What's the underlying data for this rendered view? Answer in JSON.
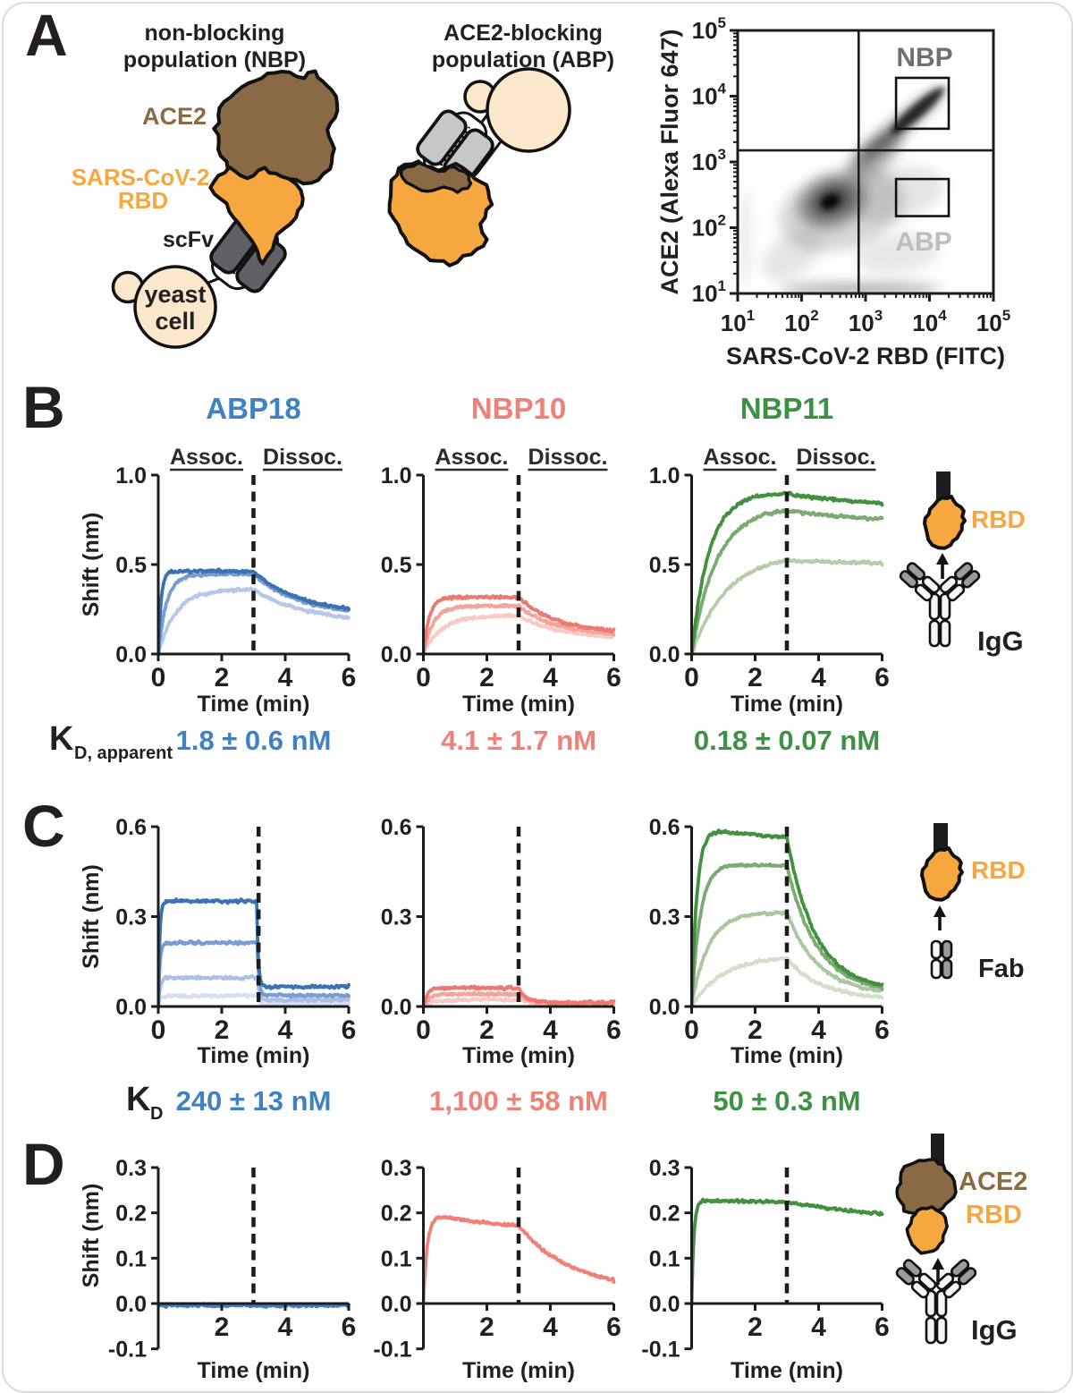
{
  "page": {
    "background": "#ffffff",
    "card_border": "#dcdcdc"
  },
  "colors": {
    "ink": "#231f20",
    "blue_text": "#3f81c1",
    "salmon_text": "#f08078",
    "green_text": "#3d9145",
    "brown": "#8a6a45",
    "orange": "#f6a73f",
    "yeast": "#fae7cc",
    "scfv_dark": "#606166",
    "scfv_light": "#c6c7c9",
    "nbp_gate_label": "#6f7072",
    "abp_gate_label": "#bdbec0"
  },
  "panels": {
    "a": {
      "letter": "A",
      "nbp_title1": "non-blocking",
      "nbp_title2": "population (NBP)",
      "abp_title1": "ACE2-blocking",
      "abp_title2": "population (ABP)",
      "labels": {
        "ace2": "ACE2",
        "sars1": "SARS-CoV-2",
        "sars2": "RBD",
        "scfv": "scFv",
        "yeast1": "yeast",
        "yeast2": "cell"
      }
    },
    "b": {
      "letter": "B",
      "kd_label_base": "K",
      "kd_label_sub": "D, apparent",
      "icon_top_label": "RBD",
      "icon_bottom_label": "IgG"
    },
    "c": {
      "letter": "C",
      "kd_label_base": "K",
      "kd_label_sub": "D",
      "icon_top_label": "RBD",
      "icon_bottom_label": "Fab"
    },
    "d": {
      "letter": "D",
      "icon_ace2_label": "ACE2",
      "icon_rbd_label": "RBD",
      "icon_bottom_label": "IgG"
    }
  },
  "chart_data": [
    {
      "id": "a-flow",
      "type": "density-scatter",
      "xlabel": "SARS-CoV-2 RBD (FITC)",
      "ylabel": "ACE2 (Alexa Fluor 647)",
      "xscale": "log",
      "yscale": "log",
      "xlim": [
        10,
        100000
      ],
      "ylim": [
        10,
        100000
      ],
      "tick_exponents": [
        1,
        2,
        3,
        4,
        5
      ],
      "tick_mantissa": "10",
      "quadrant_divider": {
        "x": 780,
        "y": 1500
      },
      "gates": [
        {
          "name": "NBP",
          "x": [
            3000,
            20000
          ],
          "y": [
            3200,
            19000
          ],
          "label_color": "#6f7072"
        },
        {
          "name": "ABP",
          "x": [
            3000,
            20000
          ],
          "y": [
            150,
            550
          ],
          "label_color": "#bdbec0"
        }
      ],
      "density_blobs": [
        {
          "cx": 300,
          "cy": 250,
          "sx": 0.55,
          "sy": 0.38,
          "rot": -22,
          "op": 0.36
        },
        {
          "cx": 290,
          "cy": 255,
          "sx": 0.3,
          "sy": 0.2,
          "rot": -25,
          "op": 0.55
        },
        {
          "cx": 280,
          "cy": 250,
          "sx": 0.15,
          "sy": 0.1,
          "rot": -25,
          "op": 0.92
        },
        {
          "cx": 420,
          "cy": 190,
          "sx": 1.0,
          "sy": 0.6,
          "rot": -16,
          "op": 0.16
        },
        {
          "cx": 70,
          "cy": 38,
          "sx": 0.52,
          "sy": 0.3,
          "rot": -32,
          "op": 0.1
        },
        {
          "cx": 1400,
          "cy": 1300,
          "sx": 0.52,
          "sy": 0.24,
          "rot": -40,
          "op": 0.3
        },
        {
          "cx": 3500,
          "cy": 3500,
          "sx": 0.9,
          "sy": 0.125,
          "rot": -41,
          "op": 0.5
        },
        {
          "cx": 6500,
          "cy": 6000,
          "sx": 0.55,
          "sy": 0.1,
          "rot": -41,
          "op": 0.75
        },
        {
          "cx": 2800,
          "cy": 320,
          "sx": 0.8,
          "sy": 0.4,
          "rot": -14,
          "op": 0.1
        },
        {
          "cx": 800,
          "cy": 11,
          "sx": 1.25,
          "sy": 0.048,
          "rot": 0,
          "op": 0.45
        },
        {
          "cx": 900,
          "cy": 13,
          "sx": 1.3,
          "sy": 0.065,
          "rot": 0,
          "op": 0.16
        },
        {
          "cx": 13,
          "cy": 70,
          "sx": 0.08,
          "sy": 0.75,
          "rot": 0,
          "op": 0.1
        },
        {
          "cx": 3200,
          "cy": 40,
          "sx": 0.65,
          "sy": 0.3,
          "rot": -8,
          "op": 0.09
        }
      ]
    },
    {
      "id": "b1",
      "panel": "B",
      "column": 0,
      "type": "line",
      "title": "ABP18",
      "title_color": "#3f81c1",
      "xlabel": "Time (min)",
      "ylabel": "Shift (nm)",
      "xlim": [
        0,
        6
      ],
      "xticks": [
        [
          0,
          "0"
        ],
        [
          2,
          "2"
        ],
        [
          4,
          "4"
        ],
        [
          6,
          "6"
        ]
      ],
      "ylim": [
        0,
        1
      ],
      "yticks": [
        [
          0,
          "0.0"
        ],
        [
          0.5,
          "0.5"
        ],
        [
          1,
          "1.0"
        ]
      ],
      "phase_labels": [
        "Assoc.",
        "Dissoc."
      ],
      "dissoc_time": 3,
      "kd_value": "1.8 ± 0.6 nM",
      "kd_color": "#3f81c1",
      "series": [
        {
          "color": "#3a72b2",
          "rise_tau": 0.09,
          "plateau": 0.462,
          "shift_at_3min": 0.462,
          "shift_at_6min": 0.253,
          "fall_tau": 1.5
        },
        {
          "color": "#7b9cd3",
          "rise_tau": 0.26,
          "plateau": 0.445,
          "shift_at_3min": 0.445,
          "shift_at_6min": 0.242,
          "fall_tau": 1.5
        },
        {
          "color": "#b7c8e7",
          "rise_tau": 0.55,
          "plateau": 0.362,
          "shift_at_3min": 0.36,
          "shift_at_6min": 0.205,
          "fall_tau": 1.65
        }
      ]
    },
    {
      "id": "b2",
      "panel": "B",
      "column": 1,
      "type": "line",
      "title": "NBP10",
      "title_color": "#f08078",
      "xlabel": "Time (min)",
      "ylabel": null,
      "xlim": [
        0,
        6
      ],
      "xticks": [
        [
          0,
          "0"
        ],
        [
          2,
          "2"
        ],
        [
          4,
          "4"
        ],
        [
          6,
          "6"
        ]
      ],
      "ylim": [
        0,
        1
      ],
      "yticks": [
        [
          0,
          "0.0"
        ],
        [
          0.5,
          "0.5"
        ],
        [
          1,
          "1.0"
        ]
      ],
      "phase_labels": [
        "Assoc.",
        "Dissoc."
      ],
      "dissoc_time": 3,
      "kd_value": "4.1 ± 1.7 nM",
      "kd_color": "#f08078",
      "series": [
        {
          "color": "#ed7a72",
          "rise_tau": 0.18,
          "plateau": 0.318,
          "shift_at_3min": 0.318,
          "shift_at_6min": 0.132,
          "fall_tau": 1.15
        },
        {
          "color": "#f3a49d",
          "rise_tau": 0.3,
          "plateau": 0.268,
          "shift_at_3min": 0.268,
          "shift_at_6min": 0.115,
          "fall_tau": 1.2
        },
        {
          "color": "#f9cac4",
          "rise_tau": 0.55,
          "plateau": 0.214,
          "shift_at_3min": 0.213,
          "shift_at_6min": 0.097,
          "fall_tau": 1.3
        }
      ]
    },
    {
      "id": "b3",
      "panel": "B",
      "column": 2,
      "type": "line",
      "title": "NBP11",
      "title_color": "#3d9145",
      "xlabel": "Time (min)",
      "ylabel": null,
      "xlim": [
        0,
        6
      ],
      "xticks": [
        [
          0,
          "0"
        ],
        [
          2,
          "2"
        ],
        [
          4,
          "4"
        ],
        [
          6,
          "6"
        ]
      ],
      "ylim": [
        0,
        1
      ],
      "yticks": [
        [
          0,
          "0.0"
        ],
        [
          0.5,
          "0.5"
        ],
        [
          1,
          "1.0"
        ]
      ],
      "phase_labels": [
        "Assoc.",
        "Dissoc."
      ],
      "dissoc_time": 3,
      "kd_value": "0.18 ± 0.07 nM",
      "kd_color": "#3d9145",
      "series": [
        {
          "color": "#43903f",
          "rise_tau": 0.55,
          "plateau": 0.9,
          "shift_at_3min": 0.896,
          "shift_at_6min": 0.845,
          "fall_tau": 2.2
        },
        {
          "color": "#7cab72",
          "rise_tau": 0.78,
          "plateau": 0.82,
          "shift_at_3min": 0.803,
          "shift_at_6min": 0.755,
          "fall_tau": 2.5
        },
        {
          "color": "#b5cda8",
          "rise_tau": 1.1,
          "plateau": 0.56,
          "shift_at_3min": 0.524,
          "shift_at_6min": 0.508,
          "fall_tau": 3.5
        }
      ]
    },
    {
      "id": "c1",
      "panel": "C",
      "column": 0,
      "type": "line",
      "title": null,
      "xlabel": "Time (min)",
      "ylabel": "Shift (nm)",
      "xlim": [
        0,
        6
      ],
      "xticks": [
        [
          0,
          "0"
        ],
        [
          2,
          "2"
        ],
        [
          4,
          "4"
        ],
        [
          6,
          "6"
        ]
      ],
      "ylim": [
        0,
        0.6
      ],
      "yticks": [
        [
          0,
          "0.0"
        ],
        [
          0.3,
          "0.3"
        ],
        [
          0.6,
          "0.6"
        ]
      ],
      "dissoc_time": 3.16,
      "kd_value": "240 ± 13 nM",
      "kd_color": "#3f81c1",
      "series": [
        {
          "color": "#3a72b2",
          "rise_tau": 0.045,
          "plateau": 0.352,
          "shift_at_3min": 0.352,
          "shift_at_6min": 0.066,
          "fall_tau": 0.05,
          "fall_start": 3.1
        },
        {
          "color": "#7b9cd3",
          "rise_tau": 0.05,
          "plateau": 0.212,
          "shift_at_3min": 0.212,
          "shift_at_6min": 0.037,
          "fall_tau": 0.05,
          "fall_start": 3.12
        },
        {
          "color": "#abc0e3",
          "rise_tau": 0.06,
          "plateau": 0.096,
          "shift_at_3min": 0.096,
          "shift_at_6min": 0.022,
          "fall_tau": 0.05,
          "fall_start": 3.12
        },
        {
          "color": "#d5def2",
          "rise_tau": 0.07,
          "plateau": 0.036,
          "shift_at_3min": 0.036,
          "shift_at_6min": 0.01,
          "fall_tau": 0.05,
          "fall_start": 3.12
        }
      ]
    },
    {
      "id": "c2",
      "panel": "C",
      "column": 1,
      "type": "line",
      "title": null,
      "xlabel": "Time (min)",
      "ylabel": null,
      "xlim": [
        0,
        6
      ],
      "xticks": [
        [
          0,
          "0"
        ],
        [
          2,
          "2"
        ],
        [
          4,
          "4"
        ],
        [
          6,
          "6"
        ]
      ],
      "ylim": [
        0,
        0.6
      ],
      "yticks": [
        [
          0,
          "0.0"
        ],
        [
          0.3,
          "0.3"
        ],
        [
          0.6,
          "0.6"
        ]
      ],
      "dissoc_time": 3,
      "kd_value": "1,100 ± 58 nM",
      "kd_color": "#f08078",
      "series": [
        {
          "color": "#ed7a72",
          "rise_tau": 0.12,
          "plateau": 0.062,
          "shift_at_3min": 0.062,
          "shift_at_6min": 0.013,
          "fall_tau": 0.25
        },
        {
          "color": "#f3a49d",
          "rise_tau": 0.2,
          "plateau": 0.042,
          "shift_at_3min": 0.042,
          "shift_at_6min": 0.011,
          "fall_tau": 0.3
        },
        {
          "color": "#f9cac4",
          "rise_tau": 0.35,
          "plateau": 0.023,
          "shift_at_3min": 0.023,
          "shift_at_6min": 0.008,
          "fall_tau": 0.35
        }
      ]
    },
    {
      "id": "c3",
      "panel": "C",
      "column": 2,
      "type": "line",
      "title": null,
      "xlabel": "Time (min)",
      "ylabel": null,
      "xlim": [
        0,
        6
      ],
      "xticks": [
        [
          0,
          "0"
        ],
        [
          2,
          "2"
        ],
        [
          4,
          "4"
        ],
        [
          6,
          "6"
        ]
      ],
      "ylim": [
        0,
        0.6
      ],
      "yticks": [
        [
          0,
          "0.0"
        ],
        [
          0.3,
          "0.3"
        ],
        [
          0.6,
          "0.6"
        ]
      ],
      "dissoc_time": 3,
      "kd_value": "50 ± 0.3 nM",
      "kd_color": "#3d9145",
      "series": [
        {
          "color": "#43903f",
          "rise_tau": 0.17,
          "plateau": 0.6,
          "sag": 0.05,
          "sag_tau": 2.5,
          "shift_at_3min": 0.565,
          "shift_at_6min": 0.072,
          "fall_tau": 0.9
        },
        {
          "color": "#7cab72",
          "rise_tau": 0.27,
          "plateau": 0.478,
          "sag": 0.012,
          "sag_tau": 3.0,
          "shift_at_3min": 0.467,
          "shift_at_6min": 0.064,
          "fall_tau": 0.95
        },
        {
          "color": "#abc79e",
          "rise_tau": 0.52,
          "plateau": 0.318,
          "sag": 0.008,
          "sag_tau": 3.0,
          "shift_at_3min": 0.311,
          "shift_at_6min": 0.052,
          "fall_tau": 1.0
        },
        {
          "color": "#d2dfca",
          "rise_tau": 0.95,
          "plateau": 0.168,
          "shift_at_3min": 0.161,
          "shift_at_6min": 0.032,
          "fall_tau": 1.05
        }
      ]
    },
    {
      "id": "d1",
      "panel": "D",
      "column": 0,
      "type": "line",
      "title": null,
      "xlabel": "Time (min)",
      "ylabel": "Shift (nm)",
      "xlim": [
        0,
        6
      ],
      "xticks": [
        [
          2,
          "2"
        ],
        [
          4,
          "4"
        ],
        [
          6,
          "6"
        ]
      ],
      "ylim": [
        -0.1,
        0.3
      ],
      "yticks": [
        [
          -0.1,
          "-0.1"
        ],
        [
          0,
          "0.0"
        ],
        [
          0.1,
          "0.1"
        ],
        [
          0.2,
          "0.2"
        ],
        [
          0.3,
          "0.3"
        ]
      ],
      "dissoc_time": 3,
      "series": [
        {
          "color": "#3e7ebf",
          "rise_tau": 0.1,
          "plateau": -0.004,
          "shift_at_3min": -0.004,
          "shift_at_6min": -0.004,
          "fall_tau": 2,
          "flat": true
        }
      ]
    },
    {
      "id": "d2",
      "panel": "D",
      "column": 1,
      "type": "line",
      "title": null,
      "xlabel": "Time (min)",
      "ylabel": null,
      "xlim": [
        0,
        6
      ],
      "xticks": [
        [
          2,
          "2"
        ],
        [
          4,
          "4"
        ],
        [
          6,
          "6"
        ]
      ],
      "ylim": [
        -0.1,
        0.3
      ],
      "yticks": [
        [
          -0.1,
          "-0.1"
        ],
        [
          0,
          "0.0"
        ],
        [
          0.1,
          "0.1"
        ],
        [
          0.2,
          "0.2"
        ],
        [
          0.3,
          "0.3"
        ]
      ],
      "dissoc_time": 3,
      "series": [
        {
          "color": "#f08078",
          "rise_tau": 0.12,
          "plateau": 0.2,
          "sag": 0.04,
          "sag_tau": 2.5,
          "shift_at_3min": 0.163,
          "shift_at_6min": 0.053,
          "fall_tau": 1.6
        }
      ]
    },
    {
      "id": "d3",
      "panel": "D",
      "column": 2,
      "type": "line",
      "title": null,
      "xlabel": "Time (min)",
      "ylabel": null,
      "xlim": [
        0,
        6
      ],
      "xticks": [
        [
          2,
          "2"
        ],
        [
          4,
          "4"
        ],
        [
          6,
          "6"
        ]
      ],
      "ylim": [
        -0.1,
        0.3
      ],
      "yticks": [
        [
          -0.1,
          "-0.1"
        ],
        [
          0,
          "0.0"
        ],
        [
          0.1,
          "0.1"
        ],
        [
          0.2,
          "0.2"
        ],
        [
          0.3,
          "0.3"
        ]
      ],
      "dissoc_time": 3,
      "series": [
        {
          "color": "#43903f",
          "rise_tau": 0.07,
          "plateau": 0.228,
          "sag": 0.006,
          "sag_tau": 3,
          "shift_at_3min": 0.224,
          "shift_at_6min": 0.198,
          "fall_tau": 4
        }
      ]
    }
  ]
}
